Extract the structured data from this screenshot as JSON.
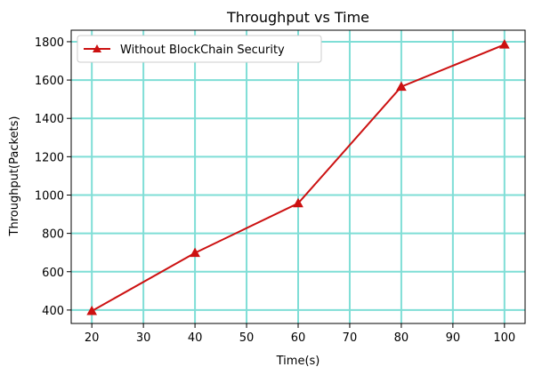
{
  "chart_data": {
    "type": "line",
    "title": "Throughput vs Time",
    "xlabel": "Time(s)",
    "ylabel": "Throughput(Packets)",
    "xlim": [
      16,
      104
    ],
    "ylim": [
      330,
      1860
    ],
    "xticks": [
      20,
      30,
      40,
      50,
      60,
      70,
      80,
      90,
      100
    ],
    "yticks": [
      400,
      600,
      800,
      1000,
      1200,
      1400,
      1600,
      1800
    ],
    "grid": true,
    "grid_color": "#7fded6",
    "legend_position": "top-left",
    "series": [
      {
        "name": "Without BlockChain Security",
        "color": "#cc1111",
        "marker": "triangle",
        "x": [
          20,
          40,
          60,
          80,
          100
        ],
        "y": [
          395,
          698,
          957,
          1565,
          1785
        ]
      }
    ]
  }
}
